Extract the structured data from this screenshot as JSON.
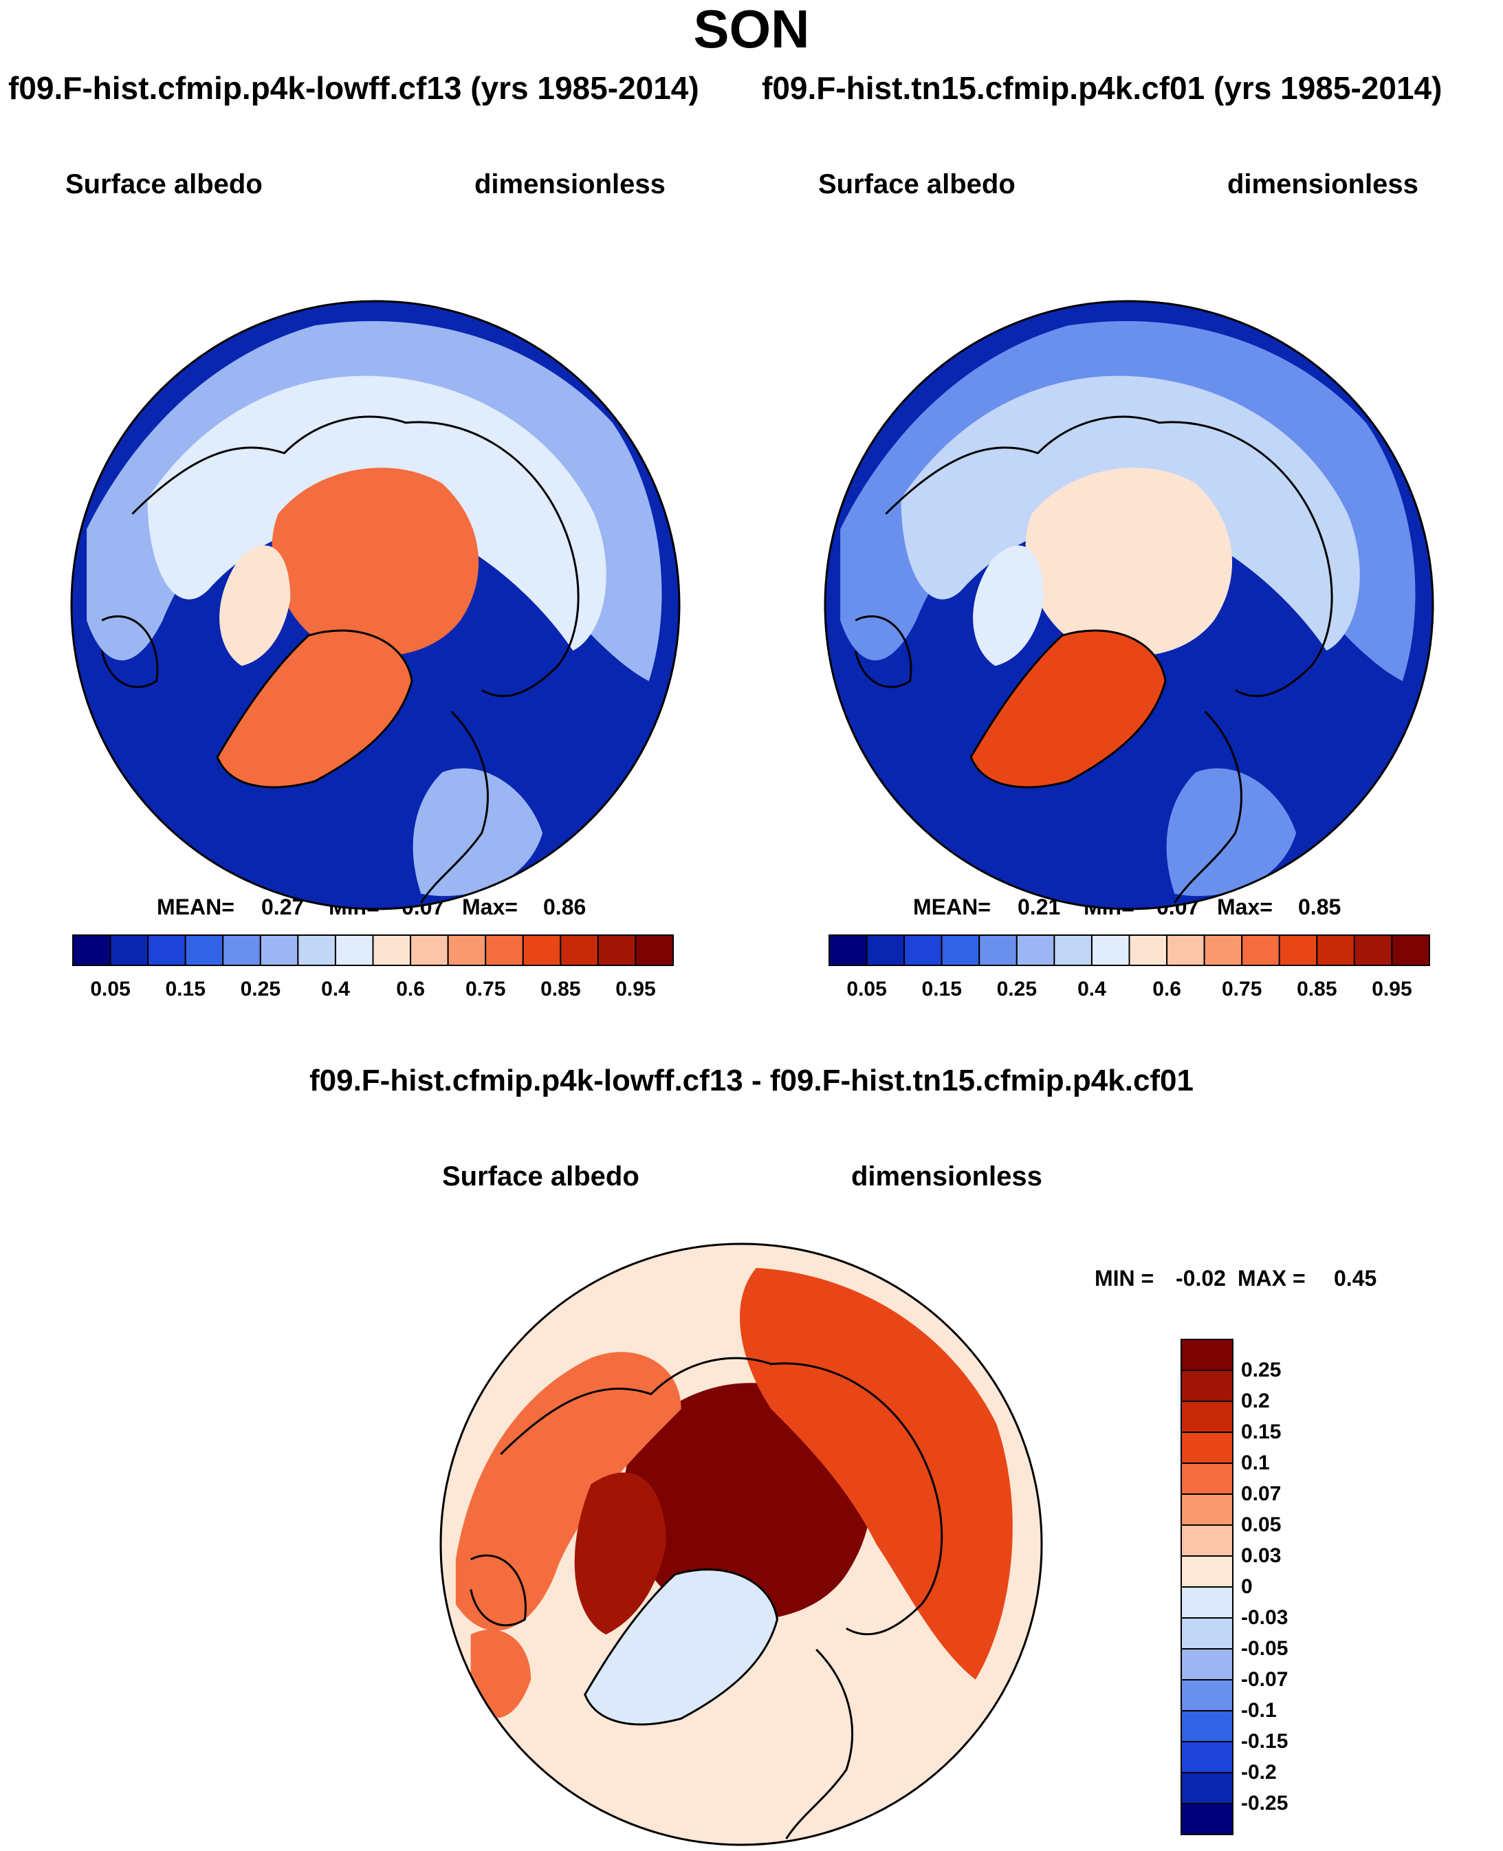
{
  "page": {
    "season": "SON",
    "case_title_left": "f09.F-hist.cfmip.p4k-lowff.cf13 (yrs 1985-2014)",
    "case_title_right": "f09.F-hist.tn15.cfmip.p4k.cf01 (yrs 1985-2014)",
    "diff_title": "f09.F-hist.cfmip.p4k-lowff.cf13 - f09.F-hist.tn15.cfmip.p4k.cf01"
  },
  "colors": {
    "abs": [
      "#00007a",
      "#0826b0",
      "#1c44d8",
      "#3264e6",
      "#6a90ee",
      "#9bb6f2",
      "#c2d6f7",
      "#e1ecfc",
      "#fde4d2",
      "#fcc5a7",
      "#f89a6e",
      "#f46d3f",
      "#e84617",
      "#c82a09",
      "#a21505",
      "#7d0202"
    ],
    "diff": [
      "#00007a",
      "#0826b0",
      "#1c44d8",
      "#3264e6",
      "#6a90ee",
      "#9bb6f2",
      "#c2d6f7",
      "#dce9fb",
      "#fde7d6",
      "#fcc5a7",
      "#f89a6e",
      "#f46d3f",
      "#e84617",
      "#c82a09",
      "#a21505",
      "#7d0202"
    ]
  },
  "chart_data": [
    {
      "type": "heatmap",
      "projection": "north polar stereographic",
      "case": "f09.F-hist.cfmip.p4k-lowff.cf13 (yrs 1985-2014)",
      "variable": "Surface albedo",
      "units": "dimensionless",
      "stats": {
        "mean_label": "MEAN=",
        "mean": "0.27",
        "min_label": "Min=",
        "min": "0.07",
        "max_label": "Max=",
        "max": "0.86"
      },
      "levels": [
        0.05,
        0.1,
        0.15,
        0.2,
        0.25,
        0.3,
        0.4,
        0.5,
        0.6,
        0.7,
        0.75,
        0.8,
        0.85,
        0.9,
        0.95
      ],
      "tick_labels": [
        "0.05",
        "0.15",
        "0.25",
        "0.4",
        "0.6",
        "0.75",
        "0.85",
        "0.95"
      ],
      "tick_level_index": [
        0,
        2,
        4,
        6,
        8,
        10,
        12,
        14
      ],
      "regions": {
        "ocean": 0.07,
        "subarctic_land": 0.28,
        "boreal_snow": 0.42,
        "arctic_ocean_ice": 0.76,
        "greenland": 0.79,
        "high_arctic_land": 0.55
      }
    },
    {
      "type": "heatmap",
      "projection": "north polar stereographic",
      "case": "f09.F-hist.tn15.cfmip.p4k.cf01 (yrs 1985-2014)",
      "variable": "Surface albedo",
      "units": "dimensionless",
      "stats": {
        "mean_label": "MEAN=",
        "mean": "0.21",
        "min_label": "Min=",
        "min": "0.07",
        "max_label": "Max=",
        "max": "0.85"
      },
      "levels": [
        0.05,
        0.1,
        0.15,
        0.2,
        0.25,
        0.3,
        0.4,
        0.5,
        0.6,
        0.7,
        0.75,
        0.8,
        0.85,
        0.9,
        0.95
      ],
      "tick_labels": [
        "0.05",
        "0.15",
        "0.25",
        "0.4",
        "0.6",
        "0.75",
        "0.85",
        "0.95"
      ],
      "tick_level_index": [
        0,
        2,
        4,
        6,
        8,
        10,
        12,
        14
      ],
      "regions": {
        "ocean": 0.07,
        "subarctic_land": 0.22,
        "boreal_snow": 0.33,
        "arctic_ocean_ice": 0.52,
        "greenland": 0.8,
        "high_arctic_land": 0.45
      }
    },
    {
      "type": "heatmap",
      "projection": "north polar stereographic",
      "case": "f09.F-hist.cfmip.p4k-lowff.cf13 - f09.F-hist.tn15.cfmip.p4k.cf01",
      "variable": "Surface albedo",
      "units": "dimensionless",
      "stats": {
        "min_label": "MIN =",
        "min": "-0.02",
        "max_label": "MAX =",
        "max": "0.45"
      },
      "levels": [
        -0.25,
        -0.2,
        -0.15,
        -0.1,
        -0.07,
        -0.05,
        -0.03,
        0,
        0.03,
        0.05,
        0.07,
        0.1,
        0.15,
        0.2,
        0.25
      ],
      "tick_labels": [
        "-0.25",
        "-0.2",
        "-0.15",
        "-0.1",
        "-0.07",
        "-0.05",
        "-0.03",
        "0",
        "0.03",
        "0.05",
        "0.07",
        "0.1",
        "0.15",
        "0.2",
        "0.25"
      ],
      "regions": {
        "background": 0.01,
        "arctic_ocean": 0.3,
        "eurasia_boreal": 0.12,
        "north_america_boreal": 0.08,
        "greenland": -0.01,
        "canadian_archipelago": 0.2
      }
    }
  ]
}
